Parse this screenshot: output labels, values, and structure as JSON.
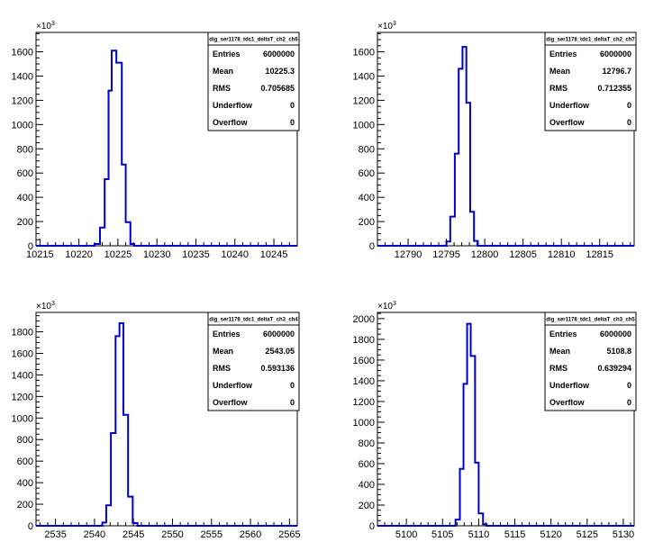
{
  "chart_data": [
    {
      "type": "histogram",
      "hist_name": "dig_ser1178_tdc1_deltaT_ch2_ch6",
      "y_scale_label": "×10",
      "y_scale_exp": "3",
      "xlim": [
        10214.5,
        10248
      ],
      "ylim": [
        0,
        1760
      ],
      "x_ticks": [
        10215,
        10220,
        10225,
        10230,
        10235,
        10240,
        10245
      ],
      "y_ticks": [
        0,
        200,
        400,
        600,
        800,
        1000,
        1200,
        1400,
        1600
      ],
      "line_color": "#0000cc",
      "bin_edges": [
        10222,
        10222.7,
        10223.3,
        10223.8,
        10224.2,
        10224.8,
        10225.5,
        10226,
        10226.6,
        10227.1
      ],
      "counts": [
        15,
        150,
        550,
        1280,
        1610,
        1510,
        670,
        195,
        15
      ],
      "stats": {
        "Entries": "6000000",
        "Mean": "10225.3",
        "RMS": "0.705685",
        "Underflow": "0",
        "Overflow": "0"
      }
    },
    {
      "type": "histogram",
      "hist_name": "dig_ser1178_tdc1_deltaT_ch2_ch7",
      "y_scale_label": "×10",
      "y_scale_exp": "3",
      "xlim": [
        12786,
        12819.5
      ],
      "ylim": [
        0,
        1760
      ],
      "x_ticks": [
        12790,
        12795,
        12800,
        12805,
        12810,
        12815
      ],
      "y_ticks": [
        0,
        200,
        400,
        600,
        800,
        1000,
        1200,
        1400,
        1600
      ],
      "line_color": "#0000cc",
      "bin_edges": [
        12795,
        12795.5,
        12796.1,
        12796.6,
        12797.1,
        12797.6,
        12798.1,
        12798.6,
        12799.1
      ],
      "counts": [
        35,
        240,
        760,
        1460,
        1640,
        1180,
        280,
        40
      ],
      "stats": {
        "Entries": "6000000",
        "Mean": "12796.7",
        "RMS": "0.712355",
        "Underflow": "0",
        "Overflow": "0"
      }
    },
    {
      "type": "histogram",
      "hist_name": "dig_ser1178_tdc1_deltaT_ch3_ch4",
      "y_scale_label": "×10",
      "y_scale_exp": "3",
      "xlim": [
        2532.5,
        2566
      ],
      "ylim": [
        0,
        1980
      ],
      "x_ticks": [
        2535,
        2540,
        2545,
        2550,
        2555,
        2560,
        2565
      ],
      "y_ticks": [
        0,
        200,
        400,
        600,
        800,
        1000,
        1200,
        1400,
        1600,
        1800
      ],
      "line_color": "#0000cc",
      "bin_edges": [
        2541,
        2541.5,
        2542.1,
        2542.7,
        2543.2,
        2543.7,
        2544.3,
        2544.9,
        2545.5
      ],
      "counts": [
        30,
        190,
        860,
        1760,
        1880,
        1030,
        270,
        25
      ],
      "stats": {
        "Entries": "6000000",
        "Mean": "2543.05",
        "RMS": "0.593136",
        "Underflow": "0",
        "Overflow": "0"
      }
    },
    {
      "type": "histogram",
      "hist_name": "dig_ser1178_tdc1_deltaT_ch3_ch5",
      "y_scale_label": "×10",
      "y_scale_exp": "3",
      "xlim": [
        5096,
        5131.5
      ],
      "ylim": [
        0,
        2060
      ],
      "x_ticks": [
        5100,
        5105,
        5110,
        5115,
        5120,
        5125,
        5130
      ],
      "y_ticks": [
        0,
        200,
        400,
        600,
        800,
        1000,
        1200,
        1400,
        1600,
        1800,
        2000
      ],
      "line_color": "#0000cc",
      "bin_edges": [
        5106.8,
        5107.4,
        5107.9,
        5108.4,
        5108.9,
        5109.5,
        5110,
        5110.6,
        5111.1
      ],
      "counts": [
        60,
        550,
        1370,
        1950,
        1640,
        610,
        120,
        15
      ],
      "stats": {
        "Entries": "6000000",
        "Mean": "5108.8",
        "RMS": "0.639294",
        "Underflow": "0",
        "Overflow": "0"
      }
    }
  ]
}
